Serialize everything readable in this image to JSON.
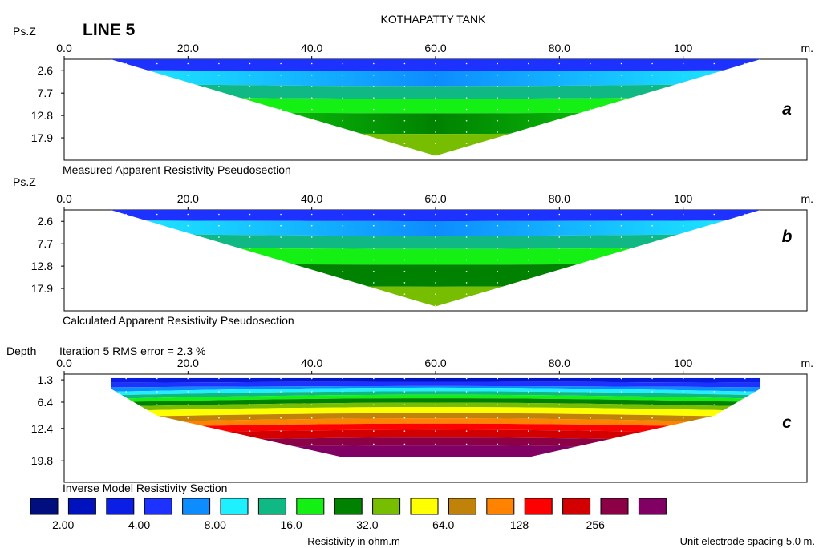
{
  "title": "KOTHAPATTY TANK",
  "line_label": "LINE 5",
  "unit_spacing_note": "Unit electrode spacing 5.0 m.",
  "colors": {
    "frame": "#000000",
    "background": "#ffffff"
  },
  "chart_data": [
    {
      "type": "heatmap",
      "panel_letter": "a",
      "caption": "Measured Apparent Resistivity Pseudosection",
      "y_label": "Ps.Z",
      "x_unit": "m.",
      "x_ticks": [
        "0.0",
        "20.0",
        "40.0",
        "60.0",
        "80.0",
        "100"
      ],
      "x_tick_values": [
        0,
        20,
        40,
        60,
        80,
        100
      ],
      "xlim": [
        0,
        120
      ],
      "y_ticks": [
        "2.6",
        "7.7",
        "12.8",
        "17.9"
      ],
      "y_tick_values": [
        2.6,
        7.7,
        12.8,
        17.9
      ],
      "ylim": [
        0,
        23
      ],
      "data_extent": {
        "x_start": 7.5,
        "x_end": 112.5,
        "apex_x": 60,
        "top_depth": 0,
        "apex_depth": 22
      },
      "layers": [
        {
          "depth_bottom": 2.5,
          "color_index": 3,
          "color_index_mid": 3
        },
        {
          "depth_bottom": 5.6,
          "color_index": 5,
          "color_index_mid": 4
        },
        {
          "depth_bottom": 8.5,
          "color_index": 6,
          "color_index_mid": 6
        },
        {
          "depth_bottom": 11.8,
          "color_index": 7,
          "color_index_mid": 7
        },
        {
          "depth_bottom": 16.5,
          "color_index": 7,
          "color_index_mid": 8
        },
        {
          "depth_bottom": 22,
          "color_index": 9,
          "color_index_mid": 9
        }
      ]
    },
    {
      "type": "heatmap",
      "panel_letter": "b",
      "caption": "Calculated Apparent Resistivity Pseudosection",
      "y_label": "Ps.Z",
      "x_unit": "m.",
      "x_ticks": [
        "0.0",
        "20.0",
        "40.0",
        "60.0",
        "80.0",
        "100"
      ],
      "x_tick_values": [
        0,
        20,
        40,
        60,
        80,
        100
      ],
      "xlim": [
        0,
        120
      ],
      "y_ticks": [
        "2.6",
        "7.7",
        "12.8",
        "17.9"
      ],
      "y_tick_values": [
        2.6,
        7.7,
        12.8,
        17.9
      ],
      "ylim": [
        0,
        23
      ],
      "data_extent": {
        "x_start": 7.5,
        "x_end": 112.5,
        "apex_x": 60,
        "top_depth": 0,
        "apex_depth": 22
      },
      "layers": [
        {
          "depth_bottom": 2.4,
          "color_index": 3,
          "color_index_mid": 3
        },
        {
          "depth_bottom": 5.4,
          "color_index": 5,
          "color_index_mid": 4
        },
        {
          "depth_bottom": 8.4,
          "color_index": 6,
          "color_index_mid": 6
        },
        {
          "depth_bottom": 12.0,
          "color_index": 7,
          "color_index_mid": 7
        },
        {
          "depth_bottom": 17.0,
          "color_index": 8,
          "color_index_mid": 8
        },
        {
          "depth_bottom": 22,
          "color_index": 9,
          "color_index_mid": 9
        }
      ]
    },
    {
      "type": "heatmap",
      "panel_letter": "c",
      "caption": "Inverse Model Resistivity Section",
      "subtitle": "Iteration 5 RMS error = 2.3 %",
      "y_label": "Depth",
      "x_unit": "m.",
      "x_ticks": [
        "0.0",
        "20.0",
        "40.0",
        "60.0",
        "80.0",
        "100"
      ],
      "x_tick_values": [
        0,
        20,
        40,
        60,
        80,
        100
      ],
      "xlim": [
        0,
        120
      ],
      "y_ticks": [
        "1.3",
        "6.4",
        "12.4",
        "19.8"
      ],
      "y_tick_values": [
        1.3,
        6.4,
        12.4,
        19.8
      ],
      "ylim": [
        0,
        24.7
      ],
      "data_extent": {
        "x_start": 7.5,
        "x_end": 112.5,
        "top_depth": 0.9,
        "outline": [
          [
            7.5,
            0.9
          ],
          [
            112.5,
            0.9
          ],
          [
            112.5,
            3.3
          ],
          [
            105,
            9.5
          ],
          [
            75,
            19
          ],
          [
            45,
            19
          ],
          [
            15,
            9.5
          ],
          [
            7.5,
            3.3
          ]
        ]
      },
      "layers": [
        {
          "depth_bottom": 2.0,
          "color_index": 2,
          "color_index_mid": 1
        },
        {
          "depth_bottom": 3.0,
          "color_index": 3,
          "color_index_mid": 3
        },
        {
          "depth_bottom": 4.0,
          "color_index": 4,
          "color_index_mid": 4
        },
        {
          "depth_bottom": 4.8,
          "color_index": 5,
          "color_index_mid": 5
        },
        {
          "depth_bottom": 5.6,
          "color_index": 6,
          "color_index_mid": 6
        },
        {
          "depth_bottom": 6.4,
          "color_index": 7,
          "color_index_mid": 7
        },
        {
          "depth_bottom": 7.4,
          "color_index": 8,
          "color_index_mid": 8
        },
        {
          "depth_bottom": 8.4,
          "color_index": 9,
          "color_index_mid": 9
        },
        {
          "depth_bottom": 9.8,
          "color_index": 10,
          "color_index_mid": 10
        },
        {
          "depth_bottom": 11.0,
          "color_index": 11,
          "color_index_mid": 11
        },
        {
          "depth_bottom": 12.2,
          "color_index": 12,
          "color_index_mid": 12
        },
        {
          "depth_bottom": 13.6,
          "color_index": 13,
          "color_index_mid": 13
        },
        {
          "depth_bottom": 15.4,
          "color_index": 14,
          "color_index_mid": 14
        },
        {
          "depth_bottom": 17.2,
          "color_index": 15,
          "color_index_mid": 15
        },
        {
          "depth_bottom": 24,
          "color_index": 16,
          "color_index_mid": 16
        }
      ]
    }
  ],
  "legend": {
    "title": "Resistivity in ohm.m",
    "colors": [
      "#000f7d",
      "#0012be",
      "#0a1ee6",
      "#1e32ff",
      "#0d8cff",
      "#1ef0ff",
      "#10b884",
      "#14f014",
      "#008200",
      "#78be00",
      "#ffff00",
      "#c08208",
      "#ff8200",
      "#ff0000",
      "#d20000",
      "#8c0046",
      "#800064"
    ],
    "labels": [
      "2.00",
      "4.00",
      "8.00",
      "16.0",
      "32.0",
      "64.0",
      "128",
      "256"
    ]
  }
}
